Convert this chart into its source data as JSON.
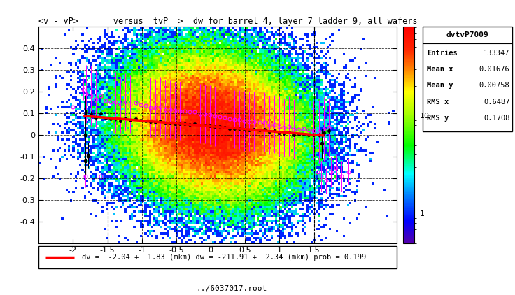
{
  "title": "<v - vP>       versus  tvP =>  dw for barrel 4, layer 7 ladder 9, all wafers",
  "xlim": [
    -2.5,
    2.7
  ],
  "ylim": [
    -0.5,
    0.5
  ],
  "xticks": [
    -2.0,
    -1.5,
    -1.0,
    -0.5,
    0.0,
    0.5,
    1.0,
    1.5
  ],
  "yticks": [
    -0.4,
    -0.3,
    -0.2,
    -0.1,
    0.0,
    0.1,
    0.2,
    0.3,
    0.4
  ],
  "stats_title": "dvtvP7009",
  "stats_entries": "133347",
  "stats_mean_x": "0.01676",
  "stats_mean_y": "0.00758",
  "stats_rms_x": "0.6487",
  "stats_rms_y": "0.1708",
  "fit_label": "dv =  -2.04 +  1.83 (mkm) dw = -211.91 +  2.34 (mkm) prob = 0.199",
  "fit_x_start": -1.85,
  "fit_x_end": 1.65,
  "fit_slope": -0.026,
  "fit_intercept": 0.04,
  "footer": "../6037017.root",
  "bg_color": "#ffffff",
  "legend_bg": "#c8c8c8",
  "vline_x": [
    -1.5,
    1.5
  ]
}
